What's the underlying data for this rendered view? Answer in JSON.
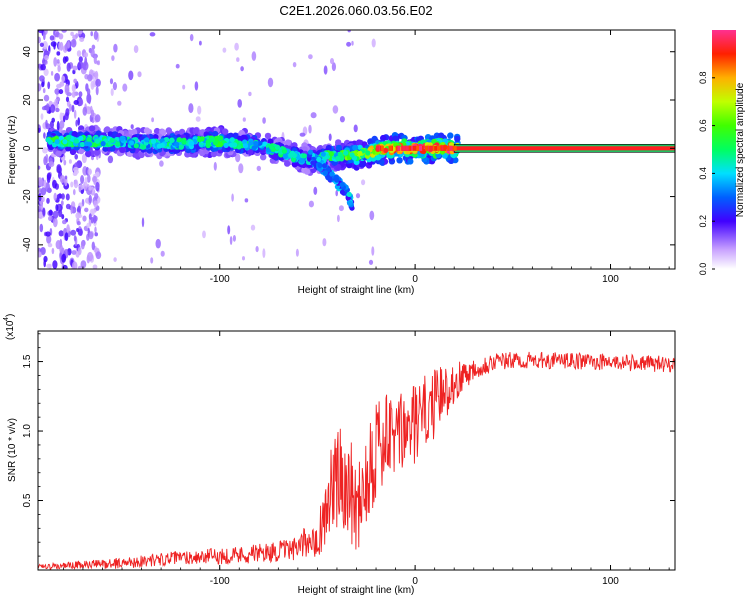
{
  "title": "C2E1.2026.060.03.56.E02",
  "chart_data": [
    {
      "type": "heatmap",
      "xlabel": "Height of straight line (km)",
      "ylabel": "Frequency (Hz)",
      "xlim": [
        -193,
        133
      ],
      "ylim": [
        -50,
        49
      ],
      "xticks": [
        -100,
        0,
        100
      ],
      "yticks": [
        -40,
        -20,
        0,
        20,
        40
      ],
      "colorbar": {
        "label": "Normalized spectral amplitude",
        "range": [
          0.0,
          1.0
        ],
        "ticks": [
          0.0,
          0.2,
          0.4,
          0.6,
          0.8
        ]
      },
      "ridge": {
        "x": [
          -180,
          -160,
          -140,
          -120,
          -100,
          -90,
          -80,
          -70,
          -60,
          -50,
          -45,
          -40,
          -35,
          -30,
          -20,
          -10,
          0,
          10,
          20,
          133
        ],
        "freq": [
          3,
          3,
          2,
          2,
          3,
          2,
          1,
          -1,
          -4,
          -5,
          -3,
          -3,
          -3,
          -3,
          -1,
          0,
          0,
          0,
          0,
          0
        ],
        "amplitude": [
          0.5,
          0.45,
          0.4,
          0.45,
          0.5,
          0.45,
          0.4,
          0.45,
          0.4,
          0.45,
          0.5,
          0.45,
          0.55,
          0.6,
          0.75,
          0.8,
          0.85,
          0.85,
          0.9,
          0.95
        ]
      },
      "branch": {
        "x": [
          -55,
          -50,
          -45,
          -40,
          -35,
          -32
        ],
        "freq": [
          -2,
          -6,
          -10,
          -14,
          -18,
          -24
        ]
      }
    },
    {
      "type": "line",
      "xlabel": "Height of straight line (km)",
      "ylabel": "SNR (10 * v/v)",
      "y_multiplier_label": "(x10",
      "y_multiplier_exponent": "4",
      "xlim": [
        -193,
        133
      ],
      "ylim": [
        0,
        1.72
      ],
      "xticks": [
        -100,
        0,
        100
      ],
      "yticks": [
        0.5,
        1.0,
        1.5
      ],
      "ytick_labels": [
        "0.5",
        "1.0",
        "1.5"
      ],
      "color": "#ee2222",
      "envelope": {
        "x": [
          -193,
          -150,
          -120,
          -100,
          -80,
          -60,
          -48,
          -44,
          -36,
          -30,
          -24,
          -20,
          -10,
          0,
          10,
          20,
          30,
          40,
          60,
          90,
          133
        ],
        "y": [
          0.02,
          0.05,
          0.09,
          0.1,
          0.12,
          0.15,
          0.3,
          0.55,
          0.7,
          0.45,
          0.75,
          0.9,
          0.95,
          1.05,
          1.2,
          1.35,
          1.45,
          1.5,
          1.51,
          1.5,
          1.48
        ],
        "spread": [
          0.02,
          0.04,
          0.05,
          0.06,
          0.07,
          0.08,
          0.2,
          0.35,
          0.4,
          0.35,
          0.45,
          0.4,
          0.3,
          0.3,
          0.25,
          0.15,
          0.08,
          0.07,
          0.06,
          0.06,
          0.06
        ]
      }
    }
  ]
}
